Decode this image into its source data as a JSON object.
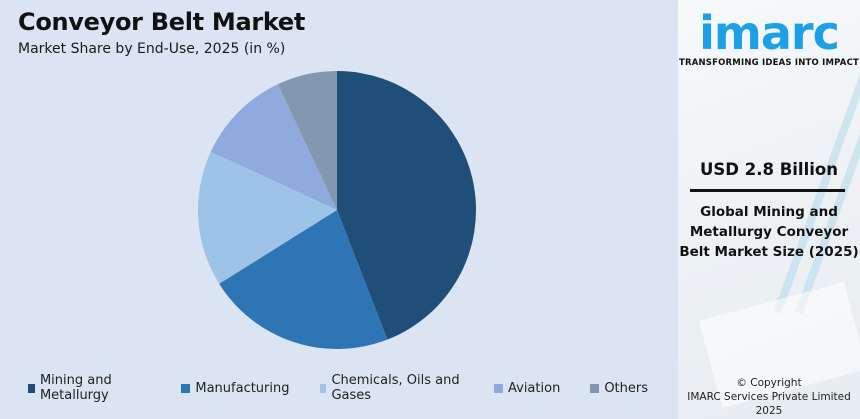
{
  "header": {
    "title": "Conveyor Belt Market",
    "subtitle": "Market Share by End-Use, 2025 (in %)"
  },
  "chart_data": {
    "type": "pie",
    "title": "Conveyor Belt Market",
    "subtitle": "Market Share by End-Use, 2025 (in %)",
    "categories": [
      "Mining and Metallurgy",
      "Manufacturing",
      "Chemicals, Oils and Gases",
      "Aviation",
      "Others"
    ],
    "values": [
      44.1,
      22.0,
      15.8,
      11.1,
      7.0
    ],
    "colors": [
      "#1f4e79",
      "#2e75b6",
      "#9dc3e6",
      "#8faadc",
      "#8497b0"
    ],
    "start_angle": "12 o'clock",
    "direction": "clockwise",
    "legend_position": "bottom"
  },
  "legend": {
    "items": [
      {
        "label": "Mining and Metallurgy",
        "color": "#1f4e79"
      },
      {
        "label": "Manufacturing",
        "color": "#2e75b6"
      },
      {
        "label": "Chemicals, Oils and Gases",
        "color": "#9dc3e6"
      },
      {
        "label": "Aviation",
        "color": "#8faadc"
      },
      {
        "label": "Others",
        "color": "#8497b0"
      }
    ]
  },
  "sidebar": {
    "logo_text": "imarc",
    "tagline": "TRANSFORMING IDEAS INTO IMPACT",
    "value": "USD 2.8 Billion",
    "description": "Global Mining and Metallurgy Conveyor Belt Market Size (2025)",
    "copyright_line1": "© Copyright",
    "copyright_line2": "IMARC Services Private Limited 2025",
    "brand_color": "#1ea0e6"
  }
}
